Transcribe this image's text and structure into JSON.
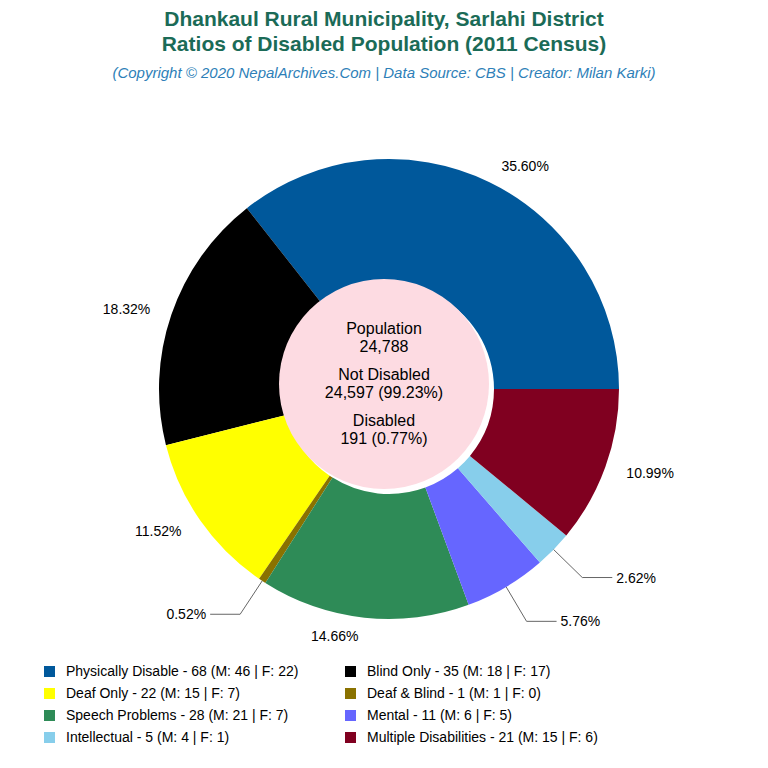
{
  "chart_data": {
    "type": "pie",
    "title": [
      "Dhankaul Rural Municipality, Sarlahi District",
      "Ratios of Disabled Population (2011 Census)"
    ],
    "subtitle": "(Copyright © 2020 NepalArchives.Com | Data Source: CBS | Creator: Milan Karki)",
    "categories": [
      "Physically Disable - 68 (M: 46 | F: 22)",
      "Blind Only - 35 (M: 18 | F: 17)",
      "Deaf Only - 22 (M: 15 | F: 7)",
      "Deaf & Blind - 1 (M: 1 | F: 0)",
      "Speech Problems - 28 (M: 21 | F: 7)",
      "Mental - 11 (M: 6 | F: 5)",
      "Intellectual - 5 (M: 4 | F: 1)",
      "Multiple Disabilities - 21 (M: 15 | F: 6)"
    ],
    "values": [
      35.6,
      18.32,
      11.52,
      0.52,
      14.66,
      5.76,
      2.62,
      10.99
    ],
    "value_labels": [
      "35.60%",
      "18.32%",
      "11.52%",
      "0.52%",
      "14.66%",
      "5.76%",
      "2.62%",
      "10.99%"
    ],
    "colors": [
      "#00589b",
      "#000000",
      "#ffff00",
      "#8a7200",
      "#2e8b57",
      "#6666ff",
      "#87ceeb",
      "#800020"
    ],
    "data_labels": true,
    "center": [
      [
        "Population",
        "24,788"
      ],
      [
        "Not Disabled",
        "24,597 (99.23%)"
      ],
      [
        "Disabled",
        "191 (0.77%)"
      ]
    ]
  }
}
